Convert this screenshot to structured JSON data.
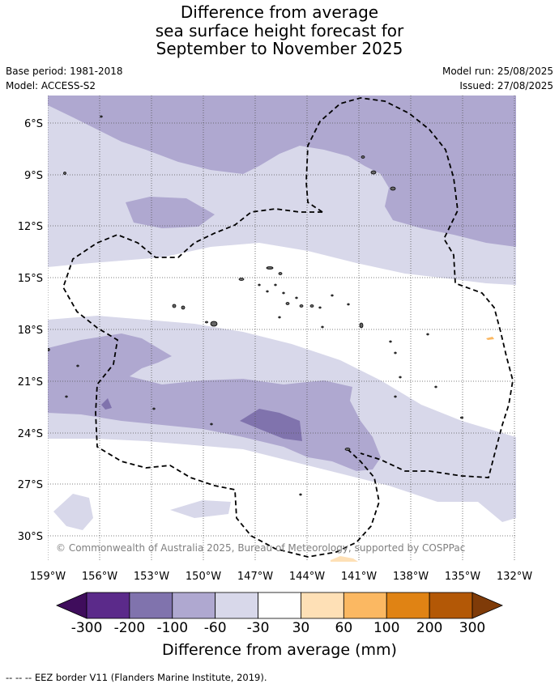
{
  "title_lines": [
    "Difference from average",
    "sea surface height forecast for",
    "September to November 2025"
  ],
  "meta": {
    "base_period": "Base period: 1981-2018",
    "model": "Model: ACCESS-S2",
    "model_run": "Model run: 25/08/2025",
    "issued": "Issued: 27/08/2025"
  },
  "map": {
    "latitude_labels": [
      "6°S",
      "9°S",
      "12°S",
      "15°S",
      "18°S",
      "21°S",
      "24°S",
      "27°S",
      "30°S"
    ],
    "longitude_labels": [
      "159°W",
      "156°W",
      "153°W",
      "150°W",
      "147°W",
      "144°W",
      "141°W",
      "138°W",
      "135°W",
      "132°W"
    ],
    "copyright": "© Commonwealth of Australia 2025, Bureau of Meteorology, supported by COSPPac",
    "grid": true
  },
  "colorbar": {
    "title": "Difference from average (mm)",
    "tick_labels": [
      "-300",
      "-200",
      "-100",
      "-60",
      "-30",
      "30",
      "60",
      "100",
      "200",
      "300"
    ],
    "colors": [
      "#3f0d5c",
      "#5b2a8a",
      "#8073ad",
      "#afa8d0",
      "#d8d8ea",
      "#ffffff",
      "#fee0b6",
      "#fbb862",
      "#e08314",
      "#b35806",
      "#7f3b08"
    ]
  },
  "footer": "--  --  -- EEZ border V11 (Flanders Marine Institute, 2019)."
}
